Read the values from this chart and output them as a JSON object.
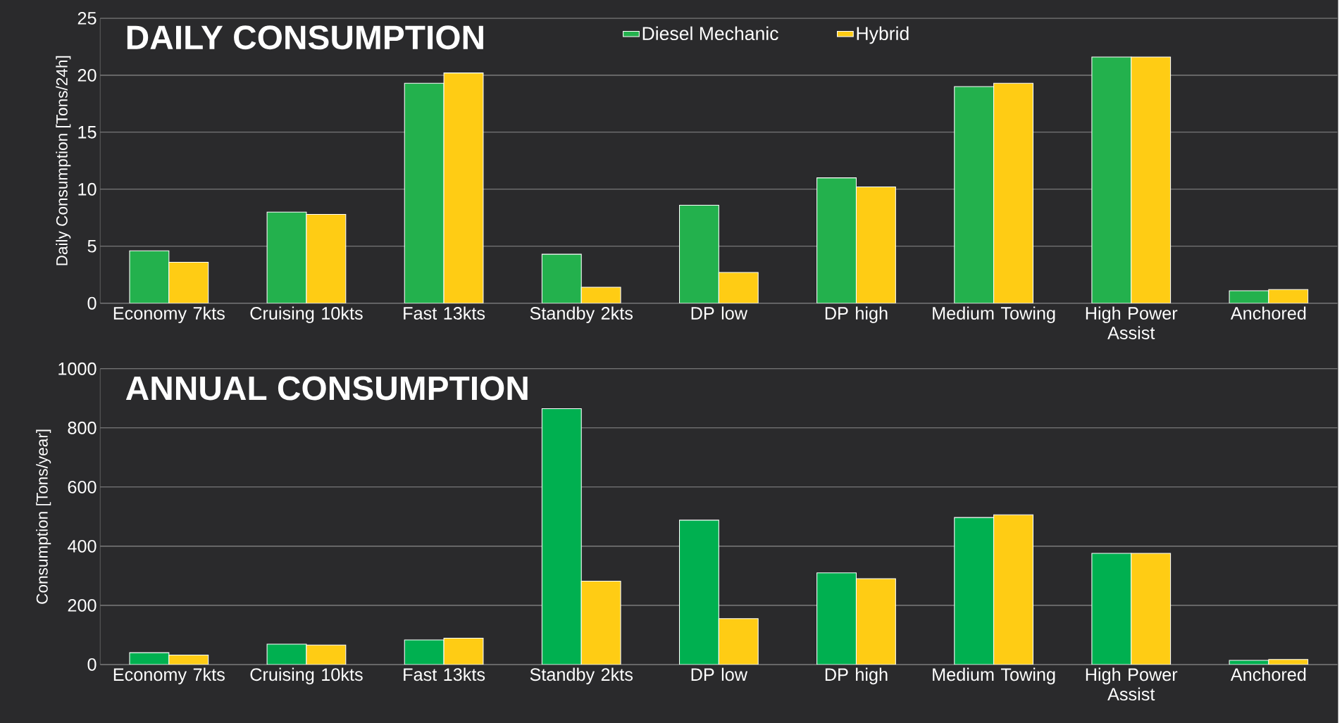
{
  "chart_data": [
    {
      "type": "bar",
      "title": "DAILY CONSUMPTION",
      "ylabel": "Daily Consumption [Tons/24h]",
      "categories": [
        "Economy 7kts",
        "Cruising 10kts",
        "Fast 13kts",
        "Standby 2kts",
        "DP low",
        "DP high",
        "Medium Towing",
        "High Power Assist",
        "Anchored"
      ],
      "series": [
        {
          "name": "Diesel Mechanic",
          "color": "#23b14d",
          "values": [
            4.6,
            8.0,
            19.3,
            4.3,
            8.6,
            11.0,
            19.0,
            21.6,
            1.1
          ]
        },
        {
          "name": "Hybrid",
          "color": "#ffcc14",
          "values": [
            3.6,
            7.8,
            20.2,
            1.4,
            2.7,
            10.2,
            19.3,
            21.6,
            1.2
          ]
        }
      ],
      "ylim": [
        0,
        25
      ],
      "yticks": [
        0,
        5,
        10,
        15,
        20,
        25
      ],
      "grid": "y",
      "legend": "top"
    },
    {
      "type": "bar",
      "title": "ANNUAL CONSUMPTION",
      "ylabel": "Consumption [Tons/year]",
      "categories": [
        "Economy 7kts",
        "Cruising 10kts",
        "Fast 13kts",
        "Standby 2kts",
        "DP low",
        "DP high",
        "Medium Towing",
        "High Power Assist",
        "Anchored"
      ],
      "series": [
        {
          "color": "#00b050",
          "values": [
            40,
            69,
            83,
            865,
            488,
            310,
            497,
            376,
            14
          ]
        },
        {
          "color": "#ffcc14",
          "values": [
            32,
            66,
            89,
            282,
            155,
            290,
            506,
            376,
            17
          ]
        }
      ],
      "ylim": [
        0,
        1000
      ],
      "yticks": [
        0,
        200,
        400,
        600,
        800,
        1000
      ],
      "grid": "y"
    }
  ]
}
